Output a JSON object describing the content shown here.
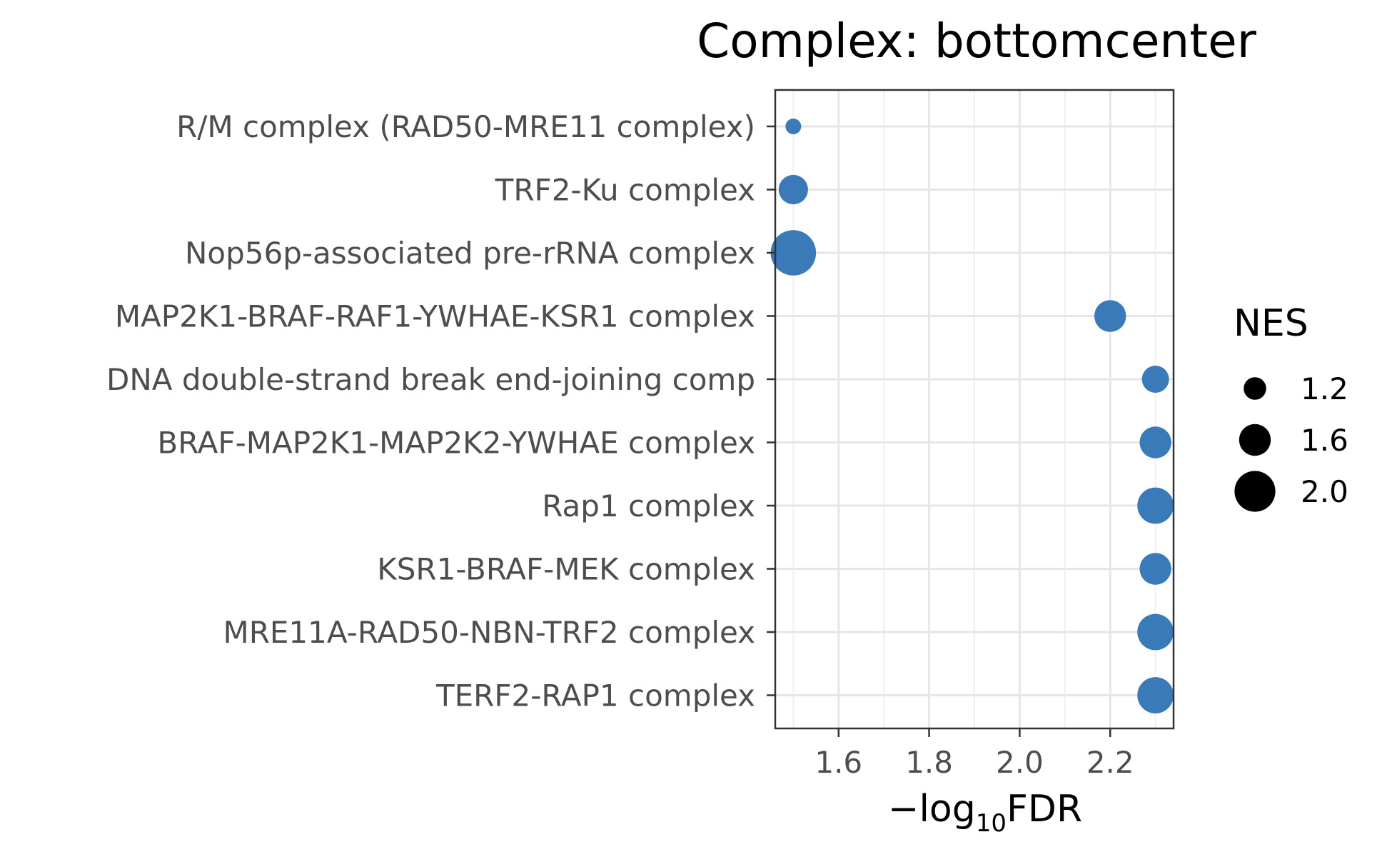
{
  "chart_data": {
    "type": "scatter",
    "title": "Complex: bottomcenter",
    "xlabel_prefix": "−log",
    "xlabel_sub": "10",
    "xlabel_suffix": "FDR",
    "ylabel": "",
    "xlim": [
      1.46,
      2.34
    ],
    "x_ticks": [
      1.6,
      1.8,
      2.0,
      2.2
    ],
    "x_tick_labels": [
      "1.6",
      "1.8",
      "2.0",
      "2.2"
    ],
    "grid": true,
    "point_color": "#3a7ab8",
    "categories": [
      "R/M complex (RAD50-MRE11 complex)",
      "TRF2-Ku complex",
      "Nop56p-associated pre-rRNA complex",
      "MAP2K1-BRAF-RAF1-YWHAE-KSR1 complex",
      "DNA double-strand break end-joining comp",
      "BRAF-MAP2K1-MAP2K2-YWHAE complex",
      "Rap1 complex",
      "KSR1-BRAF-MEK complex",
      "MRE11A-RAD50-NBN-TRF2 complex",
      "TERF2-RAP1 complex"
    ],
    "x": [
      1.5,
      1.5,
      1.5,
      2.2,
      2.3,
      2.3,
      2.3,
      2.3,
      2.3,
      2.3
    ],
    "size_values": [
      0.9,
      1.5,
      2.2,
      1.6,
      1.4,
      1.6,
      1.8,
      1.6,
      1.8,
      1.8
    ],
    "legend": {
      "title": "NES",
      "placement": "right",
      "entries": [
        {
          "label": "1.2",
          "value": 1.2
        },
        {
          "label": "1.6",
          "value": 1.6
        },
        {
          "label": "2.0",
          "value": 2.0
        }
      ]
    }
  }
}
